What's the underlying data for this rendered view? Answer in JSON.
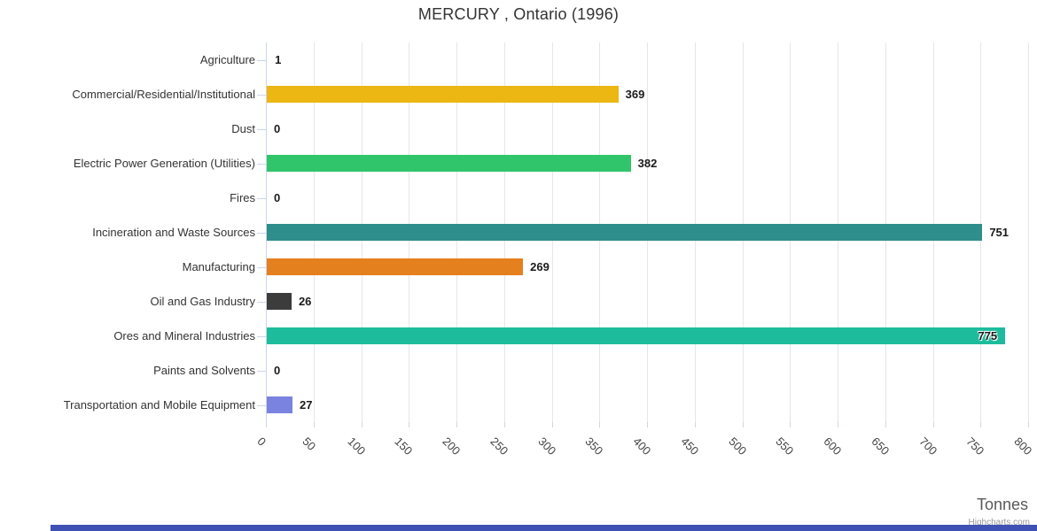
{
  "title": "MERCURY , Ontario (1996)",
  "credits": "Highcharts.com",
  "chart_data": {
    "type": "bar",
    "orientation": "horizontal",
    "title": "MERCURY , Ontario (1996)",
    "xlabel": "Tonnes",
    "ylabel": "",
    "xlim": [
      0,
      800
    ],
    "x_tick_interval": 50,
    "x_ticks": [
      0,
      50,
      100,
      150,
      200,
      250,
      300,
      350,
      400,
      450,
      500,
      550,
      600,
      650,
      700,
      750,
      800
    ],
    "x_tick_label_rotation": 45,
    "grid": true,
    "legend": false,
    "data_labels": true,
    "categories": [
      "Agriculture",
      "Commercial/Residential/Institutional",
      "Dust",
      "Electric Power Generation (Utilities)",
      "Fires",
      "Incineration and Waste Sources",
      "Manufacturing",
      "Oil and Gas Industry",
      "Ores and Mineral Industries",
      "Paints and Solvents",
      "Transportation and Mobile Equipment"
    ],
    "values": [
      1,
      369,
      0,
      382,
      0,
      751,
      269,
      26,
      775,
      0,
      27
    ],
    "bar_colors": [
      null,
      "#ecb713",
      null,
      "#30c56a",
      null,
      "#2e8e8c",
      "#e5801f",
      "#3c3c3c",
      "#1cbc9d",
      null,
      "#7b83e0"
    ]
  },
  "colors": {
    "axis_line": "#ccd6eb",
    "grid_line": "#e6e6e6",
    "title_text": "#333333",
    "category_text": "#333333",
    "value_text": "#1a1a1a",
    "tick_label_text": "#444444",
    "axis_title_text": "#595959",
    "credits_text": "#999999",
    "scrollbar": "#3f51b5"
  }
}
